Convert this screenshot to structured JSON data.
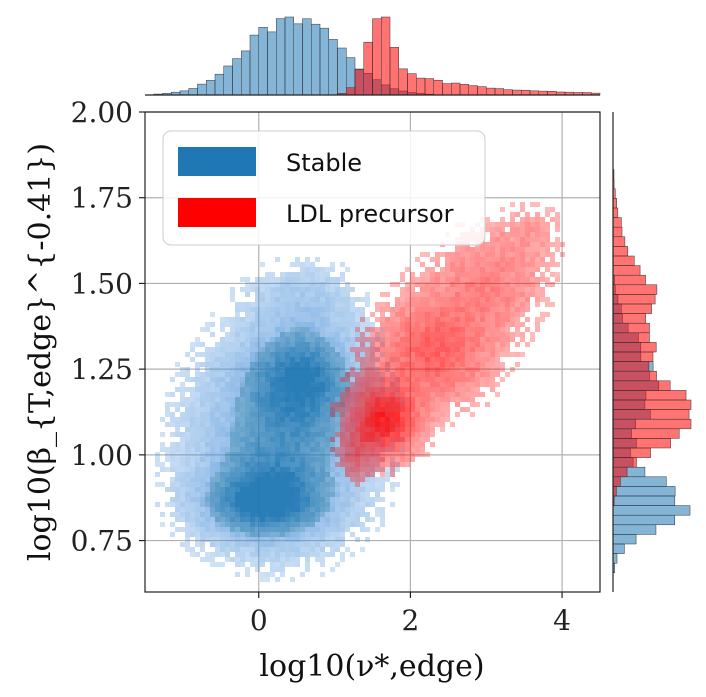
{
  "chart_data": {
    "type": "scatter",
    "subtype": "joint 2D histogram with marginal histograms",
    "xlabel": "log10(ν*,edge)",
    "ylabel": "log10(β_{T,edge}^{-0.41})",
    "xlim": [
      -1.5,
      4.5
    ],
    "ylim": [
      0.6,
      2.0
    ],
    "xticks": [
      0,
      2,
      4
    ],
    "yticks": [
      0.75,
      1.0,
      1.25,
      1.5,
      1.75,
      2.0
    ],
    "xtick_labels": [
      "0",
      "2",
      "4"
    ],
    "ytick_labels": [
      "0.75",
      "1.00",
      "1.25",
      "1.50",
      "1.75",
      "2.00"
    ],
    "grid": true,
    "legend_position": "top-left",
    "series": [
      {
        "name": "Stable",
        "color": "#1f77b4",
        "clusters": [
          {
            "x": 0.05,
            "y": 0.86,
            "sx": 0.55,
            "sy": 0.07,
            "w": 1.0
          },
          {
            "x": 0.6,
            "y": 1.24,
            "sx": 0.45,
            "sy": 0.09,
            "w": 0.8
          },
          {
            "x": 0.3,
            "y": 1.05,
            "sx": 0.7,
            "sy": 0.18,
            "w": 0.9
          },
          {
            "x": 0.6,
            "y": 1.45,
            "sx": 0.45,
            "sy": 0.07,
            "w": 0.3
          }
        ],
        "x_marginal": {
          "mu": 0.45,
          "sd": 0.6
        },
        "y_marginal": {
          "mu": 1.02,
          "sd": 0.2
        }
      },
      {
        "name": "LDL precursor",
        "color": "#ff0000",
        "clusters": [
          {
            "x": 1.65,
            "y": 1.1,
            "sx": 0.3,
            "sy": 0.07,
            "w": 1.0
          },
          {
            "x": 2.3,
            "y": 1.3,
            "sx": 0.5,
            "sy": 0.1,
            "w": 0.6
          },
          {
            "x": 3.0,
            "y": 1.5,
            "sx": 0.5,
            "sy": 0.1,
            "w": 0.35
          },
          {
            "x": 3.6,
            "y": 1.65,
            "sx": 0.3,
            "sy": 0.06,
            "w": 0.15
          },
          {
            "x": 1.3,
            "y": 1.0,
            "sx": 0.15,
            "sy": 0.05,
            "w": 0.3
          }
        ],
        "x_marginal": {
          "mu": 1.6,
          "sd": 0.7
        },
        "y_marginal": {
          "mu": 1.2,
          "sd": 0.18
        }
      }
    ]
  }
}
